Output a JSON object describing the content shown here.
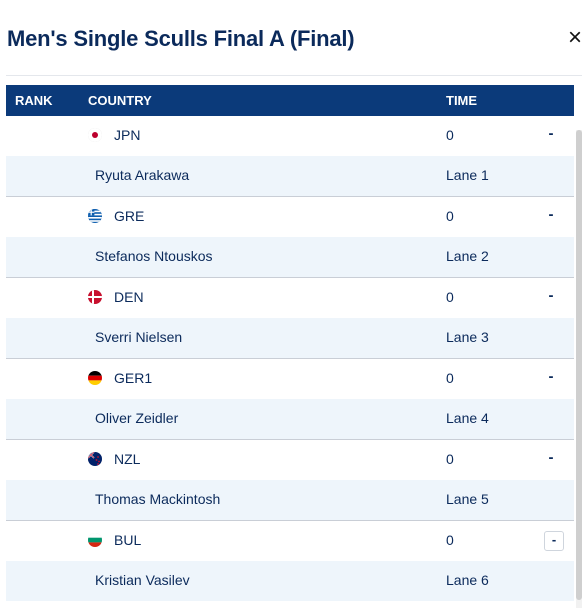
{
  "title": "Men's Single Sculls Final A (Final)",
  "close_label": "×",
  "headers": {
    "rank": "RANK",
    "country": "COUNTRY",
    "time": "TIME"
  },
  "toggle_label": "-",
  "entries": [
    {
      "country": "JPN",
      "flag": "jpn",
      "time": "0",
      "athlete": "Ryuta Arakawa",
      "lane": "Lane 1"
    },
    {
      "country": "GRE",
      "flag": "gre",
      "time": "0",
      "athlete": "Stefanos Ntouskos",
      "lane": "Lane 2"
    },
    {
      "country": "DEN",
      "flag": "den",
      "time": "0",
      "athlete": "Sverri Nielsen",
      "lane": "Lane 3"
    },
    {
      "country": "GER1",
      "flag": "ger",
      "time": "0",
      "athlete": "Oliver Zeidler",
      "lane": "Lane 4"
    },
    {
      "country": "NZL",
      "flag": "nzl",
      "time": "0",
      "athlete": "Thomas Mackintosh",
      "lane": "Lane 5"
    },
    {
      "country": "BUL",
      "flag": "bul",
      "time": "0",
      "athlete": "Kristian Vasilev",
      "lane": "Lane 6"
    }
  ]
}
